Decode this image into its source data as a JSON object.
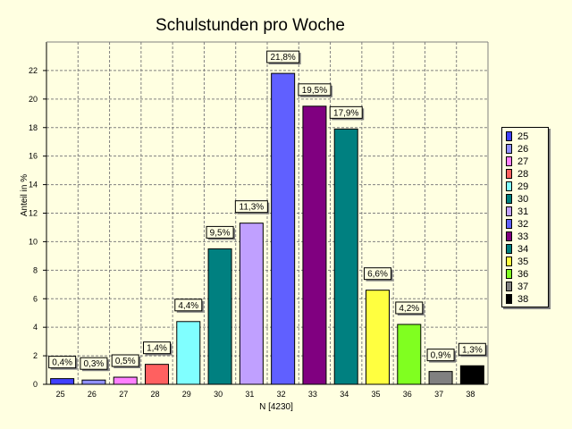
{
  "chart_data": {
    "type": "bar",
    "title": "Schulstunden pro Woche",
    "xlabel": "N [4230]",
    "ylabel": "Anteil in %",
    "ylim": [
      0,
      24
    ],
    "yticks": [
      0,
      2,
      4,
      6,
      8,
      10,
      12,
      14,
      16,
      18,
      20,
      22
    ],
    "grid": true,
    "legend_position": "right",
    "categories": [
      "25",
      "26",
      "27",
      "28",
      "29",
      "30",
      "31",
      "32",
      "33",
      "34",
      "35",
      "36",
      "37",
      "38"
    ],
    "values": [
      0.4,
      0.3,
      0.5,
      1.4,
      4.4,
      9.5,
      11.3,
      21.8,
      19.5,
      17.9,
      6.6,
      4.2,
      0.9,
      1.3
    ],
    "data_labels": [
      "0,4%",
      "0,3%",
      "0,5%",
      "1,4%",
      "4,4%",
      "9,5%",
      "11,3%",
      "21,8%",
      "19,5%",
      "17,9%",
      "6,6%",
      "4,2%",
      "0,9%",
      "1,3%"
    ],
    "colors": [
      "#4040ff",
      "#9090ff",
      "#ff80ff",
      "#ff6060",
      "#80ffff",
      "#008080",
      "#c0a0ff",
      "#6060ff",
      "#800080",
      "#008080",
      "#ffff40",
      "#80ff20",
      "#808080",
      "#000000"
    ]
  }
}
